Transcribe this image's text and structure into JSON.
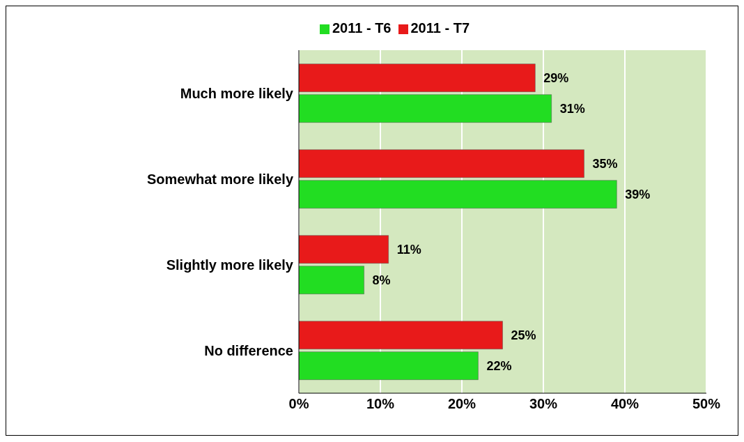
{
  "chart_data": {
    "type": "bar",
    "orientation": "horizontal",
    "categories": [
      "Much more likely",
      "Somewhat more likely",
      "Slightly more likely",
      "No difference"
    ],
    "series": [
      {
        "name": "2011 - T7",
        "color": "#e81a1a",
        "values": [
          29,
          35,
          11,
          25
        ],
        "value_labels": [
          "29%",
          "35%",
          "11%",
          "25%"
        ]
      },
      {
        "name": "2011 - T6",
        "color": "#22dd22",
        "values": [
          31,
          39,
          8,
          22
        ],
        "value_labels": [
          "31%",
          "39%",
          "8%",
          "22%"
        ]
      }
    ],
    "xlim": [
      0,
      50
    ],
    "xticks": [
      {
        "value": 0,
        "label": "0%"
      },
      {
        "value": 10,
        "label": "10%"
      },
      {
        "value": 20,
        "label": "20%"
      },
      {
        "value": 30,
        "label": "30%"
      },
      {
        "value": 40,
        "label": "40%"
      },
      {
        "value": 50,
        "label": "50%"
      }
    ],
    "grid": "x",
    "legend": "top"
  }
}
